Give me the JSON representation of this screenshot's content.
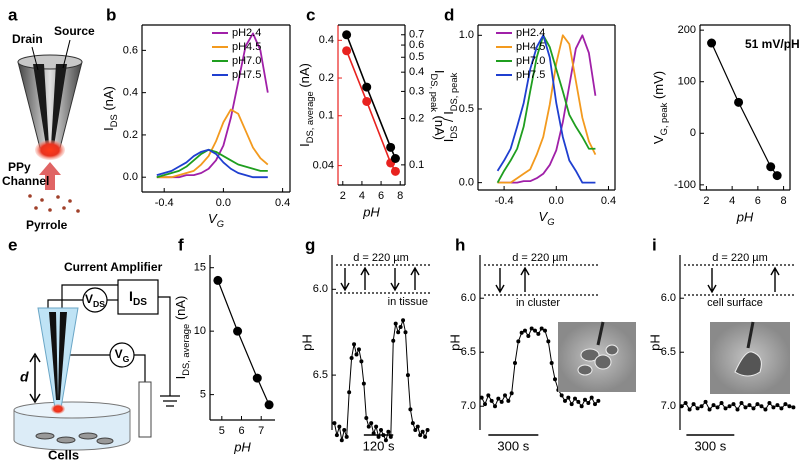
{
  "diagram_a": {
    "label": "a",
    "drain": "Drain",
    "source": "Source",
    "channel": [
      "PPy",
      "Channel"
    ],
    "monomer": "Pyrrole"
  },
  "diagram_e": {
    "label": "e",
    "amplifier": "Current Amplifier",
    "vds": [
      "V",
      "DS"
    ],
    "ids": [
      "I",
      "DS"
    ],
    "vg": [
      "V",
      "G"
    ],
    "distance": "d",
    "cells": "Cells"
  },
  "chart_data": [
    {
      "label": "b",
      "type": "line",
      "xlabel": [
        "V",
        "G"
      ],
      "ylabel": [
        "I",
        "DS",
        " (nA)"
      ],
      "x": [
        -0.45,
        -0.4,
        -0.35,
        -0.3,
        -0.25,
        -0.2,
        -0.15,
        -0.1,
        -0.05,
        0,
        0.05,
        0.1,
        0.15,
        0.2,
        0.25,
        0.3
      ],
      "series": [
        {
          "name": "pH2.4",
          "color": "#a020a8",
          "values": [
            0,
            0,
            0,
            0,
            0.01,
            0.01,
            0.02,
            0.04,
            0.08,
            0.15,
            0.28,
            0.45,
            0.62,
            0.68,
            0.6,
            0.4
          ]
        },
        {
          "name": "pH4.5",
          "color": "#f39a1e",
          "values": [
            0,
            0,
            0,
            0.01,
            0.02,
            0.03,
            0.06,
            0.1,
            0.17,
            0.26,
            0.32,
            0.3,
            0.22,
            0.14,
            0.09,
            0.06
          ]
        },
        {
          "name": "pH7.0",
          "color": "#1f9e1f",
          "values": [
            0,
            0.01,
            0.02,
            0.03,
            0.05,
            0.08,
            0.11,
            0.13,
            0.12,
            0.1,
            0.08,
            0.06,
            0.05,
            0.04,
            0.03,
            0.03
          ]
        },
        {
          "name": "pH7.5",
          "color": "#1f3fd0",
          "values": [
            0.01,
            0.02,
            0.03,
            0.05,
            0.07,
            0.1,
            0.12,
            0.13,
            0.11,
            0.07,
            0.04,
            0.02,
            0.01,
            0,
            0,
            0
          ]
        }
      ],
      "xlim": [
        -0.55,
        0.45
      ],
      "ylim": [
        -0.07,
        0.72
      ],
      "xticks": [
        -0.4,
        {
          "value": 0,
          "label": "0.0"
        },
        0.4
      ],
      "yticks": [
        {
          "value": 0,
          "label": "0.0"
        },
        0.2,
        0.4,
        0.6
      ],
      "legend": "top-right"
    },
    {
      "label": "c",
      "type": "line",
      "markers": true,
      "xlabel": "pH",
      "ylabel": [
        "I",
        "DS, average",
        " (nA)"
      ],
      "y2label": [
        "I",
        "DS, peak",
        " (nA)"
      ],
      "x": [
        2.4,
        4.5,
        7.0,
        7.5
      ],
      "series": [
        {
          "color": "#e8221f",
          "values": [
            0.33,
            0.13,
            0.042,
            0.036
          ]
        },
        {
          "color": "#000000",
          "axis": "y2",
          "values": [
            0.7,
            0.32,
            0.13,
            0.11
          ]
        }
      ],
      "xlim": [
        1.5,
        8.5
      ],
      "ylim": [
        0.028,
        0.53
      ],
      "y2lim": [
        0.074,
        0.81
      ],
      "log_y": true,
      "log_y2": true,
      "xticks": [
        2,
        4,
        6,
        8
      ],
      "yticks": [
        0.04,
        0.1,
        0.2,
        0.4
      ],
      "y2ticks": [
        0.1,
        0.2,
        0.3,
        0.4,
        0.5,
        0.6,
        0.7
      ]
    },
    {
      "label": "d",
      "type": "line",
      "xlabel": [
        "V",
        "G"
      ],
      "ylabel": [
        "I",
        "DS",
        " / I",
        "DS, peak"
      ],
      "x": [
        -0.45,
        -0.4,
        -0.35,
        -0.3,
        -0.25,
        -0.2,
        -0.15,
        -0.1,
        -0.05,
        0,
        0.05,
        0.1,
        0.15,
        0.2,
        0.25,
        0.3
      ],
      "series": [
        {
          "name": "pH2.4",
          "color": "#a020a8",
          "values": [
            0,
            0,
            0,
            0,
            0.01,
            0.01,
            0.03,
            0.06,
            0.12,
            0.22,
            0.41,
            0.66,
            0.91,
            1.0,
            0.88,
            0.59
          ]
        },
        {
          "name": "pH4.5",
          "color": "#f39a1e",
          "values": [
            0,
            0,
            0,
            0.03,
            0.06,
            0.09,
            0.19,
            0.31,
            0.53,
            0.81,
            1.0,
            0.94,
            0.69,
            0.44,
            0.28,
            0.19
          ]
        },
        {
          "name": "pH7.0",
          "color": "#1f9e1f",
          "values": [
            0,
            0.08,
            0.15,
            0.23,
            0.38,
            0.62,
            0.85,
            1.0,
            0.92,
            0.77,
            0.62,
            0.46,
            0.38,
            0.31,
            0.23,
            0.23
          ]
        },
        {
          "name": "pH7.5",
          "color": "#1f3fd0",
          "values": [
            0.08,
            0.15,
            0.23,
            0.38,
            0.54,
            0.77,
            0.92,
            1.0,
            0.85,
            0.54,
            0.31,
            0.15,
            0.08,
            0,
            0,
            0
          ]
        }
      ],
      "xlim": [
        -0.6,
        0.45
      ],
      "ylim": [
        -0.05,
        1.07
      ],
      "xticks": [
        -0.4,
        {
          "value": 0,
          "label": "0.0"
        },
        0.4
      ],
      "yticks": [
        {
          "value": 0,
          "label": "0.0"
        },
        0.5,
        {
          "value": 1,
          "label": "1.0"
        }
      ],
      "legend": "top-left"
    },
    {
      "type": "line",
      "markers": true,
      "xlabel": "pH",
      "ylabel": [
        "V",
        "G, peak",
        " (mV)"
      ],
      "x": [
        2.4,
        4.5,
        7.0,
        7.5
      ],
      "series": [
        {
          "color": "#000000",
          "values": [
            175,
            60,
            -65,
            -82
          ]
        }
      ],
      "xlim": [
        1.5,
        8.5
      ],
      "ylim": [
        -110,
        210
      ],
      "xticks": [
        2,
        4,
        6,
        8
      ],
      "yticks": [
        -100,
        0,
        100,
        200
      ],
      "annotations": [
        "51 mV/pH"
      ]
    },
    {
      "label": "f",
      "type": "line",
      "markers": true,
      "xlabel": "pH",
      "ylabel": [
        "I",
        "DS, average",
        " (nA)"
      ],
      "x": [
        4.8,
        5.8,
        6.8,
        7.4
      ],
      "series": [
        {
          "color": "#000000",
          "values": [
            14,
            10,
            6.3,
            4.2
          ]
        }
      ],
      "xlim": [
        4.4,
        7.7
      ],
      "ylim": [
        3,
        16
      ],
      "xticks": [
        5,
        6,
        7
      ],
      "yticks": [
        5,
        10,
        15
      ]
    },
    {
      "label": "g",
      "type": "line",
      "markers": true,
      "ylabel": "pH",
      "x": [
        0,
        10,
        20,
        30,
        40,
        50,
        60,
        70,
        80,
        90,
        100,
        110,
        120,
        130,
        140,
        150,
        160,
        170,
        180,
        190,
        200,
        210,
        220,
        230,
        240,
        250,
        260,
        270,
        280,
        290,
        300,
        310,
        320,
        330,
        340,
        350,
        360,
        370,
        380
      ],
      "series": [
        {
          "color": "#000000",
          "values": [
            6.78,
            6.85,
            6.8,
            6.88,
            6.82,
            6.86,
            6.6,
            6.4,
            6.32,
            6.38,
            6.35,
            6.42,
            6.55,
            6.75,
            6.8,
            6.78,
            6.84,
            6.8,
            6.86,
            6.82,
            6.85,
            6.88,
            6.83,
            6.86,
            6.3,
            6.2,
            6.25,
            6.22,
            6.18,
            6.25,
            6.5,
            6.7,
            6.78,
            6.82,
            6.8,
            6.85,
            6.83,
            6.86,
            6.82
          ]
        }
      ],
      "xlim": [
        -10,
        390
      ],
      "ylim": [
        6.82,
        5.8
      ],
      "yticks": [
        {
          "value": 6,
          "label": "6.0"
        },
        6.5
      ],
      "scalebar": {
        "value": 120,
        "label": "120 s"
      },
      "annotations": [
        "d = 220 µm",
        "in tissue"
      ]
    },
    {
      "label": "h",
      "type": "line",
      "markers": true,
      "ylabel": "pH",
      "x": [
        0,
        20,
        40,
        60,
        80,
        100,
        120,
        140,
        160,
        180,
        200,
        220,
        240,
        260,
        280,
        300,
        320,
        340,
        360,
        380,
        400,
        420,
        440,
        460,
        480,
        500,
        520,
        540,
        560,
        580,
        600,
        620,
        640,
        660,
        680,
        700
      ],
      "series": [
        {
          "color": "#000000",
          "values": [
            6.92,
            6.98,
            6.9,
            6.95,
            7.0,
            6.93,
            6.96,
            6.9,
            6.95,
            6.88,
            6.6,
            6.4,
            6.32,
            6.3,
            6.35,
            6.28,
            6.3,
            6.33,
            6.28,
            6.3,
            6.4,
            6.6,
            6.75,
            6.85,
            6.9,
            6.95,
            6.92,
            6.98,
            6.93,
            6.96,
            7.0,
            6.94,
            6.97,
            6.92,
            6.98,
            6.95
          ]
        }
      ],
      "xlim": [
        -10,
        710
      ],
      "ylim": [
        7.22,
        5.6
      ],
      "yticks": [
        {
          "value": 6,
          "label": "6.0"
        },
        6.5,
        {
          "value": 7,
          "label": "7.0"
        }
      ],
      "scalebar": {
        "value": 300,
        "label": "300 s"
      },
      "annotations": [
        "d = 220 µm",
        "in cluster"
      ]
    },
    {
      "label": "i",
      "type": "line",
      "markers": true,
      "ylabel": "pH",
      "x": [
        0,
        25,
        50,
        75,
        100,
        125,
        150,
        175,
        200,
        225,
        250,
        275,
        300,
        325,
        350,
        375,
        400,
        425,
        450,
        475,
        500,
        525,
        550,
        575,
        600,
        625,
        650,
        675,
        700
      ],
      "series": [
        {
          "color": "#000000",
          "values": [
            7.0,
            6.97,
            7.03,
            6.98,
            7.02,
            7.0,
            6.96,
            7.03,
            6.99,
            7.01,
            6.97,
            7.02,
            7.0,
            6.98,
            7.03,
            6.97,
            7.01,
            6.99,
            7.02,
            6.98,
            7.0,
            7.03,
            6.97,
            7.01,
            6.99,
            7.02,
            6.98,
            7.0,
            7.01
          ]
        }
      ],
      "xlim": [
        -10,
        710
      ],
      "ylim": [
        7.22,
        5.6
      ],
      "yticks": [
        {
          "value": 6,
          "label": "6.0"
        },
        6.5,
        {
          "value": 7,
          "label": "7.0"
        }
      ],
      "scalebar": {
        "value": 300,
        "label": "300 s"
      },
      "annotations": [
        "d = 220 µm",
        "cell surface"
      ]
    }
  ]
}
